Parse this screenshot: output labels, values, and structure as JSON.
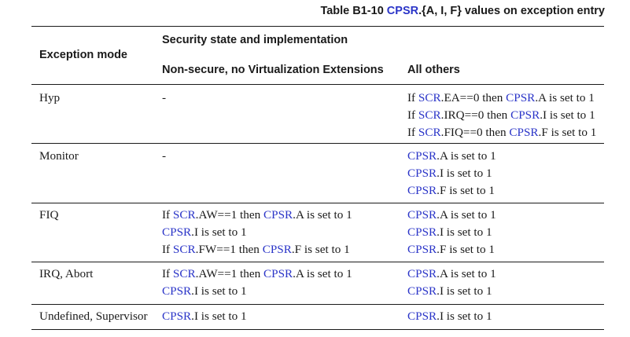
{
  "caption": {
    "prefix": "Table B1-10 ",
    "link": "CPSR",
    "suffix": ".{A, I, F} values on exception entry"
  },
  "header": {
    "mode": "Exception mode",
    "group": "Security state and implementation",
    "col_nonsecure": "Non-secure, no Virtualization Extensions",
    "col_others": "All others"
  },
  "rows": [
    {
      "mode": "Hyp",
      "nonsecure": [
        [
          {
            "t": "-",
            "link": false
          }
        ]
      ],
      "others": [
        [
          {
            "t": "If ",
            "link": false
          },
          {
            "t": "SCR",
            "link": true
          },
          {
            "t": ".EA==0 then ",
            "link": false
          },
          {
            "t": "CPSR",
            "link": true
          },
          {
            "t": ".A is set to 1",
            "link": false
          }
        ],
        [
          {
            "t": "If ",
            "link": false
          },
          {
            "t": "SCR",
            "link": true
          },
          {
            "t": ".IRQ==0 then ",
            "link": false
          },
          {
            "t": "CPSR",
            "link": true
          },
          {
            "t": ".I is set to 1",
            "link": false
          }
        ],
        [
          {
            "t": "If ",
            "link": false
          },
          {
            "t": "SCR",
            "link": true
          },
          {
            "t": ".FIQ==0 then ",
            "link": false
          },
          {
            "t": "CPSR",
            "link": true
          },
          {
            "t": ".F is set to 1",
            "link": false
          }
        ]
      ]
    },
    {
      "mode": "Monitor",
      "nonsecure": [
        [
          {
            "t": "-",
            "link": false
          }
        ]
      ],
      "others": [
        [
          {
            "t": "CPSR",
            "link": true
          },
          {
            "t": ".A is set to 1",
            "link": false
          }
        ],
        [
          {
            "t": "CPSR",
            "link": true
          },
          {
            "t": ".I is set to 1",
            "link": false
          }
        ],
        [
          {
            "t": "CPSR",
            "link": true
          },
          {
            "t": ".F is set to 1",
            "link": false
          }
        ]
      ]
    },
    {
      "mode": "FIQ",
      "nonsecure": [
        [
          {
            "t": "If ",
            "link": false
          },
          {
            "t": "SCR",
            "link": true
          },
          {
            "t": ".AW==1 then ",
            "link": false
          },
          {
            "t": "CPSR",
            "link": true
          },
          {
            "t": ".A is set to 1",
            "link": false
          }
        ],
        [
          {
            "t": "CPSR",
            "link": true
          },
          {
            "t": ".I is set to 1",
            "link": false
          }
        ],
        [
          {
            "t": "If ",
            "link": false
          },
          {
            "t": "SCR",
            "link": true
          },
          {
            "t": ".FW==1 then ",
            "link": false
          },
          {
            "t": "CPSR",
            "link": true
          },
          {
            "t": ".F is set to 1",
            "link": false
          }
        ]
      ],
      "others": [
        [
          {
            "t": "CPSR",
            "link": true
          },
          {
            "t": ".A is set to 1",
            "link": false
          }
        ],
        [
          {
            "t": "CPSR",
            "link": true
          },
          {
            "t": ".I is set to 1",
            "link": false
          }
        ],
        [
          {
            "t": "CPSR",
            "link": true
          },
          {
            "t": ".F is set to 1",
            "link": false
          }
        ]
      ]
    },
    {
      "mode": "IRQ, Abort",
      "nonsecure": [
        [
          {
            "t": "If ",
            "link": false
          },
          {
            "t": "SCR",
            "link": true
          },
          {
            "t": ".AW==1 then ",
            "link": false
          },
          {
            "t": "CPSR",
            "link": true
          },
          {
            "t": ".A is set to 1",
            "link": false
          }
        ],
        [
          {
            "t": "CPSR",
            "link": true
          },
          {
            "t": ".I is set to 1",
            "link": false
          }
        ]
      ],
      "others": [
        [
          {
            "t": "CPSR",
            "link": true
          },
          {
            "t": ".A is set to 1",
            "link": false
          }
        ],
        [
          {
            "t": "CPSR",
            "link": true
          },
          {
            "t": ".I is set to 1",
            "link": false
          }
        ]
      ]
    },
    {
      "mode": "Undefined, Supervisor",
      "nonsecure": [
        [
          {
            "t": "CPSR",
            "link": true
          },
          {
            "t": ".I is set to 1",
            "link": false
          }
        ]
      ],
      "others": [
        [
          {
            "t": "CPSR",
            "link": true
          },
          {
            "t": ".I is set to 1",
            "link": false
          }
        ]
      ]
    }
  ],
  "colors": {
    "link": "#2b35c8",
    "text": "#1a1a1a"
  }
}
